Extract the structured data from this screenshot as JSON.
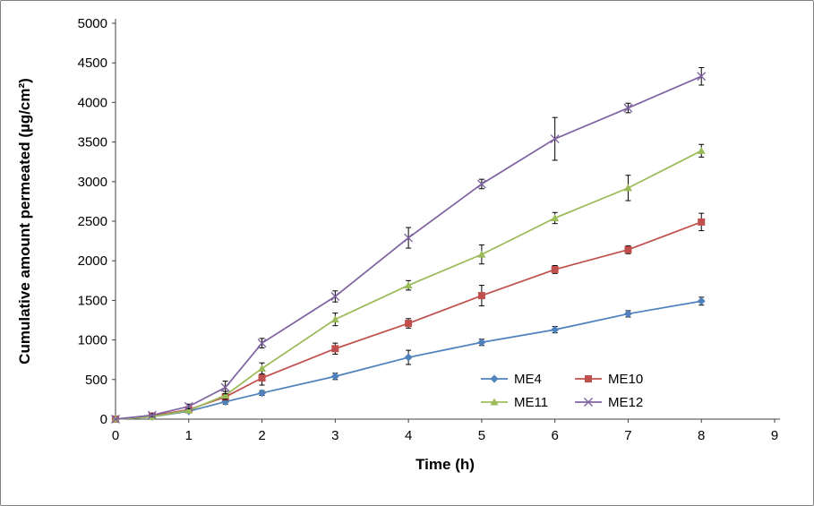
{
  "figure": {
    "background": "#ffffff",
    "border_color": "#808080"
  },
  "chart_data": {
    "type": "line",
    "title": "",
    "xlabel": "Time (h)",
    "ylabel": "Cumulative amount permeated (µg/cm²)",
    "xlim": [
      0,
      9
    ],
    "ylim": [
      0,
      5000
    ],
    "x_ticks": [
      0,
      1,
      2,
      3,
      4,
      5,
      6,
      7,
      8,
      9
    ],
    "y_ticks": [
      0,
      500,
      1000,
      1500,
      2000,
      2500,
      3000,
      3500,
      4000,
      4500,
      5000
    ],
    "grid": false,
    "legend_position": "inside-bottom-right-2x2",
    "axis_color": "#404040",
    "error_bar_color": "#000000",
    "x": [
      0,
      0.5,
      1,
      1.5,
      2,
      3,
      4,
      5,
      6,
      7,
      8
    ],
    "series": [
      {
        "name": "ME4",
        "color": "#4F81BD",
        "marker": "diamond",
        "values": [
          0,
          30,
          100,
          220,
          330,
          540,
          780,
          970,
          1130,
          1330,
          1490
        ],
        "errors": [
          0,
          15,
          20,
          30,
          30,
          40,
          90,
          40,
          40,
          40,
          50
        ]
      },
      {
        "name": "ME10",
        "color": "#C0504D",
        "marker": "square",
        "values": [
          0,
          40,
          120,
          280,
          520,
          890,
          1210,
          1560,
          1890,
          2140,
          2490
        ],
        "errors": [
          0,
          15,
          25,
          40,
          90,
          70,
          60,
          130,
          50,
          50,
          110
        ]
      },
      {
        "name": "ME11",
        "color": "#9BBB59",
        "marker": "triangle",
        "values": [
          0,
          30,
          110,
          300,
          640,
          1260,
          1690,
          2080,
          2540,
          2920,
          3390
        ],
        "errors": [
          0,
          15,
          25,
          50,
          70,
          80,
          60,
          120,
          70,
          160,
          80
        ]
      },
      {
        "name": "ME12",
        "color": "#8064A2",
        "marker": "x",
        "values": [
          0,
          50,
          160,
          400,
          960,
          1550,
          2290,
          2970,
          3540,
          3930,
          4330
        ],
        "errors": [
          0,
          20,
          30,
          80,
          60,
          70,
          130,
          60,
          270,
          60,
          110
        ]
      }
    ]
  }
}
